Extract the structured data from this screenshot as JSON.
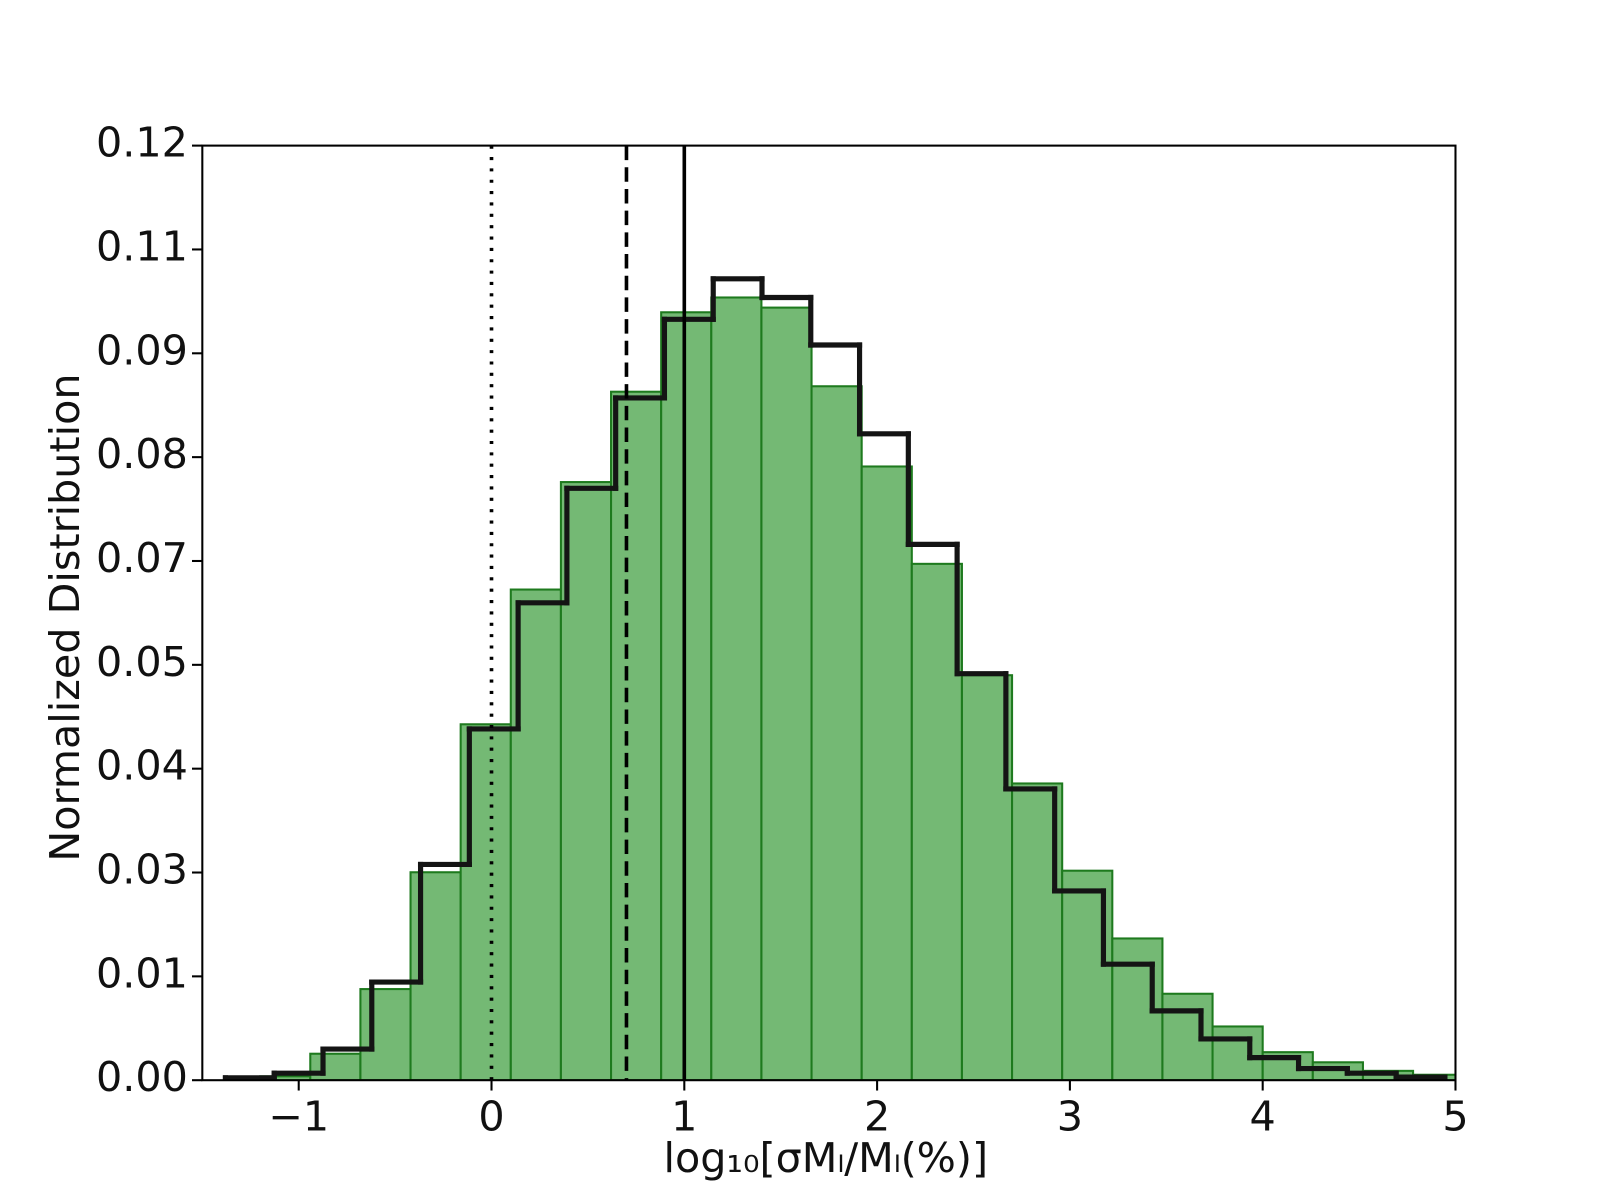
{
  "chart_data": {
    "type": "histogram",
    "xlabel": "log₁₀[σMₗ/Mₗ(%)]",
    "ylabel": "Normalized Distribution",
    "xlim": [
      -1.5,
      5
    ],
    "ylim": [
      0,
      0.12
    ],
    "xticks": [
      {
        "value": -1,
        "label": "−1"
      },
      0,
      1,
      2,
      3,
      4,
      5
    ],
    "yticks": [
      {
        "value": 0,
        "label": "0.00"
      },
      {
        "value": 0.013333,
        "label": "0.01"
      },
      {
        "value": 0.026667,
        "label": "0.03"
      },
      0.04,
      {
        "value": 0.053333,
        "label": "0.05"
      },
      {
        "value": 0.066667,
        "label": "0.07"
      },
      0.08,
      {
        "value": 0.093333,
        "label": "0.09"
      },
      {
        "value": 0.106667,
        "label": "0.11"
      },
      0.12
    ],
    "series": [
      {
        "style": "bar",
        "color": "#74b974",
        "edgecolor": "#1e7a1e",
        "bins": [
          -1.2,
          -0.94,
          -0.68,
          -0.42,
          -0.16,
          0.1,
          0.36,
          0.62,
          0.88,
          1.14,
          1.4,
          1.66,
          1.92,
          2.18,
          2.44,
          2.7,
          2.96,
          3.22,
          3.48,
          3.74,
          4.0,
          4.26,
          4.52,
          4.78,
          5.04
        ],
        "values": [
          0.0005,
          0.0034,
          0.0117,
          0.0267,
          0.0457,
          0.063,
          0.0768,
          0.0884,
          0.0986,
          0.1005,
          0.0992,
          0.0891,
          0.0788,
          0.0663,
          0.052,
          0.0381,
          0.0269,
          0.0182,
          0.0111,
          0.0069,
          0.0036,
          0.0023,
          0.0012,
          0.0007
        ]
      },
      {
        "style": "step",
        "color": "#141414",
        "bins": [
          -1.38,
          -1.127,
          -0.874,
          -0.621,
          -0.368,
          -0.115,
          0.138,
          0.391,
          0.644,
          0.897,
          1.15,
          1.403,
          1.656,
          1.909,
          2.162,
          2.415,
          2.668,
          2.921,
          3.174,
          3.427,
          3.68,
          3.933,
          4.186,
          4.439,
          4.692,
          4.945
        ],
        "values": [
          0.0003,
          0.0009,
          0.004,
          0.0126,
          0.0277,
          0.0451,
          0.0613,
          0.076,
          0.0876,
          0.0977,
          0.1029,
          0.1005,
          0.0944,
          0.083,
          0.0688,
          0.0522,
          0.0374,
          0.0243,
          0.0149,
          0.0089,
          0.0053,
          0.0029,
          0.0015,
          0.0009,
          0.0004
        ]
      }
    ],
    "vlines": [
      {
        "x": 0,
        "style": "dotted",
        "color": "#000000"
      },
      {
        "x": 0.7,
        "style": "dashed",
        "color": "#000000"
      },
      {
        "x": 1,
        "style": "solid",
        "color": "#000000"
      }
    ]
  }
}
